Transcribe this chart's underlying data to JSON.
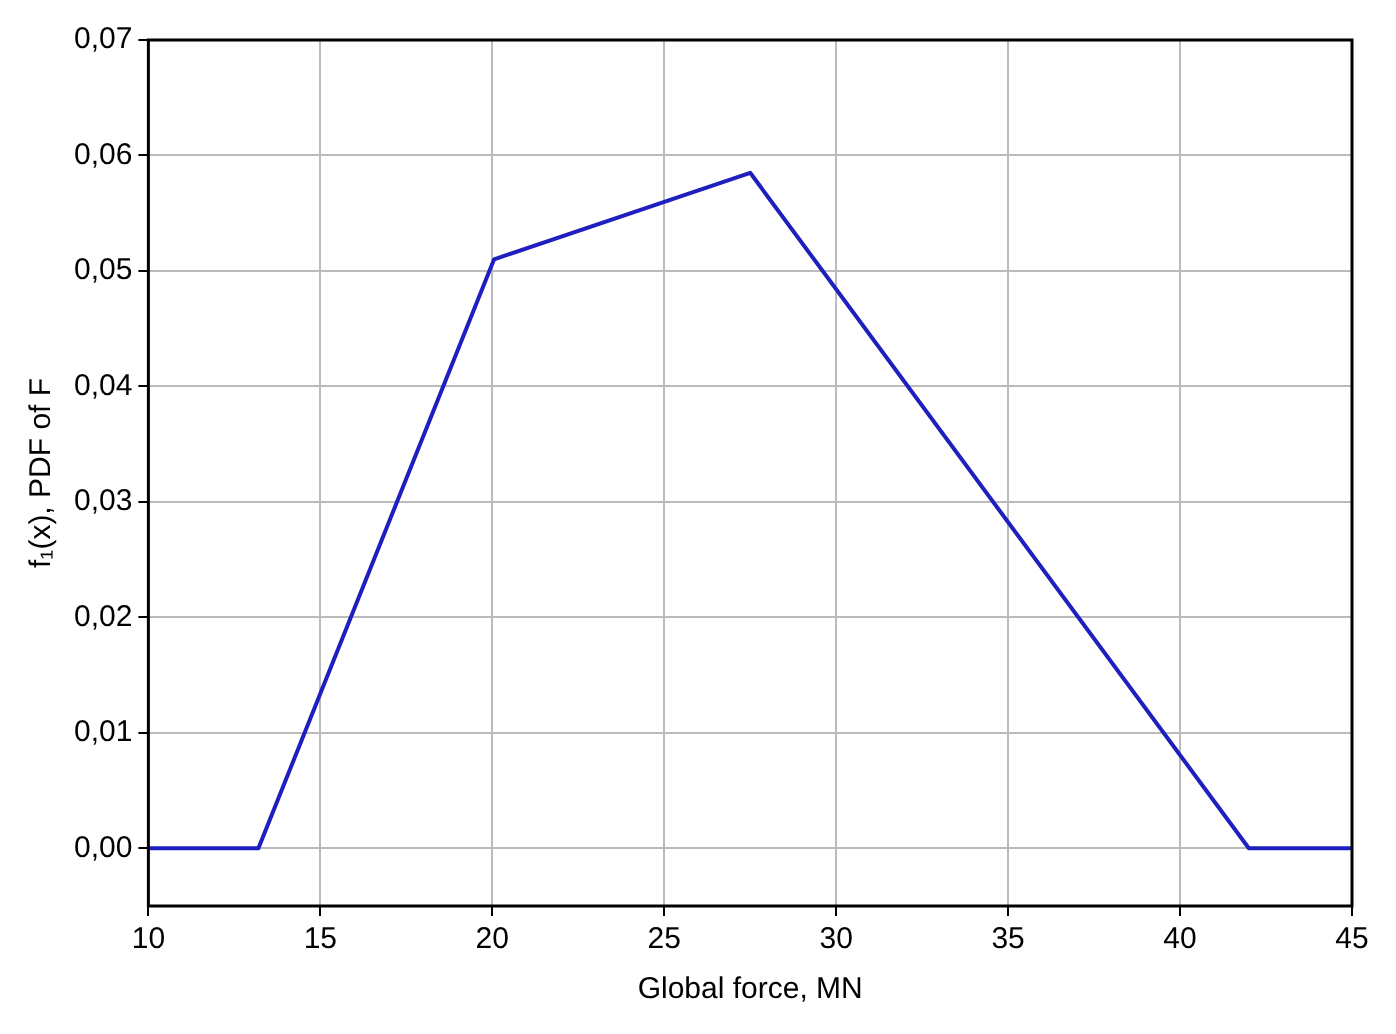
{
  "chart_data": {
    "type": "line",
    "xlabel": "Global force, MN",
    "ylabel": "f₁(x), PDF of F",
    "x": [
      10,
      13.2,
      20.05,
      27.5,
      42,
      45
    ],
    "series": [
      {
        "color": "#1f1fbf",
        "values": [
          0,
          0,
          0.051,
          0.0585,
          0,
          0
        ]
      }
    ],
    "xlim": [
      10,
      45
    ],
    "xticks": [
      10,
      15,
      20,
      25,
      30,
      35,
      40,
      45
    ],
    "ylim": [
      -0.005,
      0.07
    ],
    "yticks": [
      {
        "value": 0,
        "label": "0,00"
      },
      {
        "value": 0.01,
        "label": "0,01"
      },
      {
        "value": 0.02,
        "label": "0,02"
      },
      {
        "value": 0.03,
        "label": "0,03"
      },
      {
        "value": 0.04,
        "label": "0,04"
      },
      {
        "value": 0.05,
        "label": "0,05"
      },
      {
        "value": 0.06,
        "label": "0,06"
      },
      {
        "value": 0.07,
        "label": "0,07"
      }
    ],
    "grid": true,
    "legend": false,
    "marker": "none",
    "line_style": "solid"
  }
}
